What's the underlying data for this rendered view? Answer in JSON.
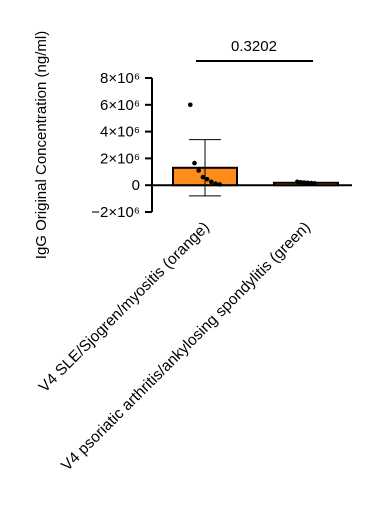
{
  "chart_data": {
    "type": "bar",
    "ylabel": "IgG Original Concentration (ng/ml)",
    "ylim": [
      -2000000,
      8000000
    ],
    "yticks": [
      {
        "value": -2000000,
        "label": "−2×10⁶"
      },
      {
        "value": 0,
        "label": "0"
      },
      {
        "value": 2000000,
        "label": "2×10⁶"
      },
      {
        "value": 4000000,
        "label": "4×10⁶"
      },
      {
        "value": 6000000,
        "label": "6×10⁶"
      },
      {
        "value": 8000000,
        "label": "8×10⁶"
      }
    ],
    "categories": [
      "V4 SLE/Sjogren/myositis (orange)",
      "V4 psoriatic arthritis/ankylosing spondylitis (green)"
    ],
    "bar_colors": [
      "#FF8C1A",
      "#FF8C1A"
    ],
    "values": [
      1300000,
      180000
    ],
    "error_sd": [
      2100000,
      60000
    ],
    "points": [
      [
        6000000,
        1650000,
        1100000,
        600000,
        450000,
        250000,
        120000,
        60000
      ],
      [
        250000,
        220000,
        200000,
        180000,
        160000,
        140000
      ]
    ],
    "comparison": {
      "between": [
        0,
        1
      ],
      "label": "0.3202"
    }
  }
}
